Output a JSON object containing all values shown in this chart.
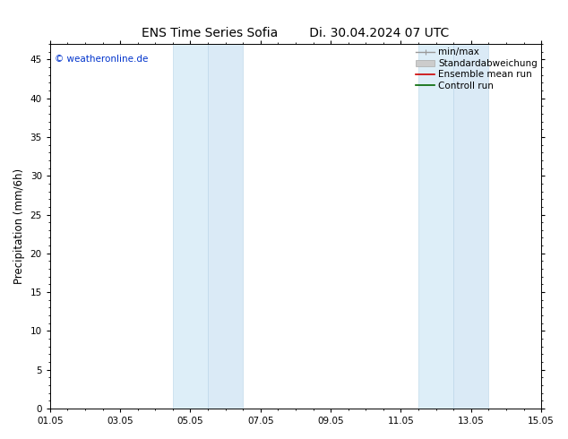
{
  "title_left": "ENS Time Series Sofia",
  "title_right": "Di. 30.04.2024 07 UTC",
  "ylabel": "Precipitation (mm/6h)",
  "xlabel": "",
  "ymin": 0,
  "ymax": 47,
  "yticks": [
    0,
    5,
    10,
    15,
    20,
    25,
    30,
    35,
    40,
    45
  ],
  "xtick_labels": [
    "01.05",
    "03.05",
    "05.05",
    "07.05",
    "09.05",
    "11.05",
    "13.05",
    "15.05"
  ],
  "xtick_positions": [
    0,
    2,
    4,
    6,
    8,
    10,
    12,
    14
  ],
  "xlim": [
    0,
    14
  ],
  "shaded_regions": [
    {
      "xstart": 3.5,
      "xend": 4.5,
      "color": "#ddeef8",
      "edgecolor": "#b8d4e8"
    },
    {
      "xstart": 4.5,
      "xend": 5.5,
      "color": "#daeaf6",
      "edgecolor": "#b8d4e8"
    },
    {
      "xstart": 10.5,
      "xend": 11.5,
      "color": "#ddeef8",
      "edgecolor": "#b8d4e8"
    },
    {
      "xstart": 11.5,
      "xend": 12.5,
      "color": "#daeaf6",
      "edgecolor": "#b8d4e8"
    }
  ],
  "background_color": "#ffffff",
  "plot_bg_color": "#ffffff",
  "watermark_text": "© weatheronline.de",
  "watermark_color": "#0033cc",
  "legend_items": [
    {
      "label": "min/max",
      "color": "#999999",
      "lw": 1.0,
      "ls": "-"
    },
    {
      "label": "Standardabweichung",
      "color": "#cccccc",
      "lw": 5,
      "ls": "-"
    },
    {
      "label": "Ensemble mean run",
      "color": "#cc0000",
      "lw": 1.2,
      "ls": "-"
    },
    {
      "label": "Controll run",
      "color": "#006600",
      "lw": 1.2,
      "ls": "-"
    }
  ],
  "tick_fontsize": 7.5,
  "label_fontsize": 8.5,
  "title_fontsize": 10,
  "legend_fontsize": 7.5
}
